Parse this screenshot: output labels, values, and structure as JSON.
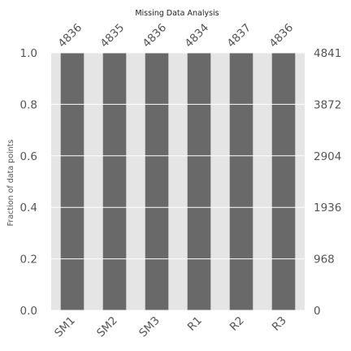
{
  "chart_data": {
    "type": "bar",
    "title": "Missing Data Analysis",
    "xlabel": "",
    "ylabel": "Fraction of data points",
    "categories": [
      "SM1",
      "SM2",
      "SM3",
      "R1",
      "R2",
      "R3"
    ],
    "counts": [
      4836,
      4835,
      4836,
      4834,
      4837,
      4836
    ],
    "values": [
      0.999,
      0.9988,
      0.999,
      0.9986,
      0.9992,
      0.999
    ],
    "total_rows": 4841,
    "ylim": [
      0,
      1.0
    ],
    "y_ticks": [
      "0.0",
      "0.2",
      "0.4",
      "0.6",
      "0.8",
      "1.0"
    ],
    "y_right_ticks": [
      "0",
      "968",
      "1936",
      "2904",
      "3872",
      "4841"
    ],
    "grid": true,
    "colors": {
      "bar": "#696969",
      "background": "#e5e5e5",
      "gap": "#ffffff",
      "gridline": "#ffffff"
    }
  }
}
